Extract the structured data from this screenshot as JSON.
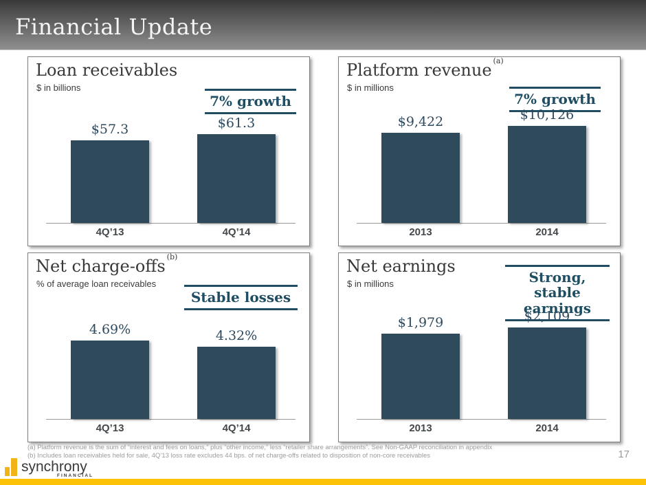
{
  "slide": {
    "title": "Financial Update",
    "page_number": "17",
    "footnotes": [
      "(a) Platform revenue is the sum of “interest and fees on loans,” plus “other income,” less “retailer share arrangements”.  See Non-GAAP reconciliation in appendix",
      "(b) Includes loan receivables held for sale, 4Q’13 loss rate excludes 44 bps. of net charge-offs related to disposition of non-core receivables"
    ],
    "logo": {
      "name": "synchrony",
      "sub": "FINANCIAL"
    }
  },
  "colors": {
    "accent_navy": "#1f4e63",
    "bar_fill": "#2e4a5b",
    "brand_gold": "#fcc306",
    "header_gradient_top": "#383838",
    "header_gradient_bottom": "#8f8f8f"
  },
  "chart_data": [
    {
      "id": "loan_receivables",
      "type": "bar",
      "title": "Loan receivables",
      "title_superscript": "",
      "subtitle": "$ in billions",
      "callout": "7% growth",
      "categories": [
        "4Q’13",
        "4Q’14"
      ],
      "values": [
        57.3,
        61.3
      ],
      "labels": [
        "$57.3",
        "$61.3"
      ],
      "ylim": [
        0,
        93
      ],
      "grid": false,
      "legend": false
    },
    {
      "id": "platform_revenue",
      "type": "bar",
      "title": "Platform revenue",
      "title_superscript": "(a)",
      "subtitle": "$ in millions",
      "callout": "7% growth",
      "categories": [
        "2013",
        "2014"
      ],
      "values": [
        9422,
        10126
      ],
      "labels": [
        "$9,422",
        "$10,126"
      ],
      "ylim": [
        0,
        14000
      ],
      "grid": false,
      "legend": false
    },
    {
      "id": "net_charge_offs",
      "type": "bar",
      "title": "Net charge-offs",
      "title_superscript": "(b)",
      "subtitle": "% of average loan receivables",
      "callout": "Stable losses",
      "categories": [
        "4Q’13",
        "4Q’14"
      ],
      "values": [
        4.69,
        4.32
      ],
      "labels": [
        "4.69%",
        "4.32%"
      ],
      "ylim": [
        0,
        8
      ],
      "grid": false,
      "legend": false
    },
    {
      "id": "net_earnings",
      "type": "bar",
      "title": "Net earnings",
      "title_superscript": "",
      "subtitle": "$ in millions",
      "callout": "Strong, stable earnings",
      "categories": [
        "2013",
        "2014"
      ],
      "values": [
        1979,
        2109
      ],
      "labels": [
        "$1,979",
        "$2,109"
      ],
      "ylim": [
        0,
        3100
      ],
      "grid": false,
      "legend": false
    }
  ]
}
